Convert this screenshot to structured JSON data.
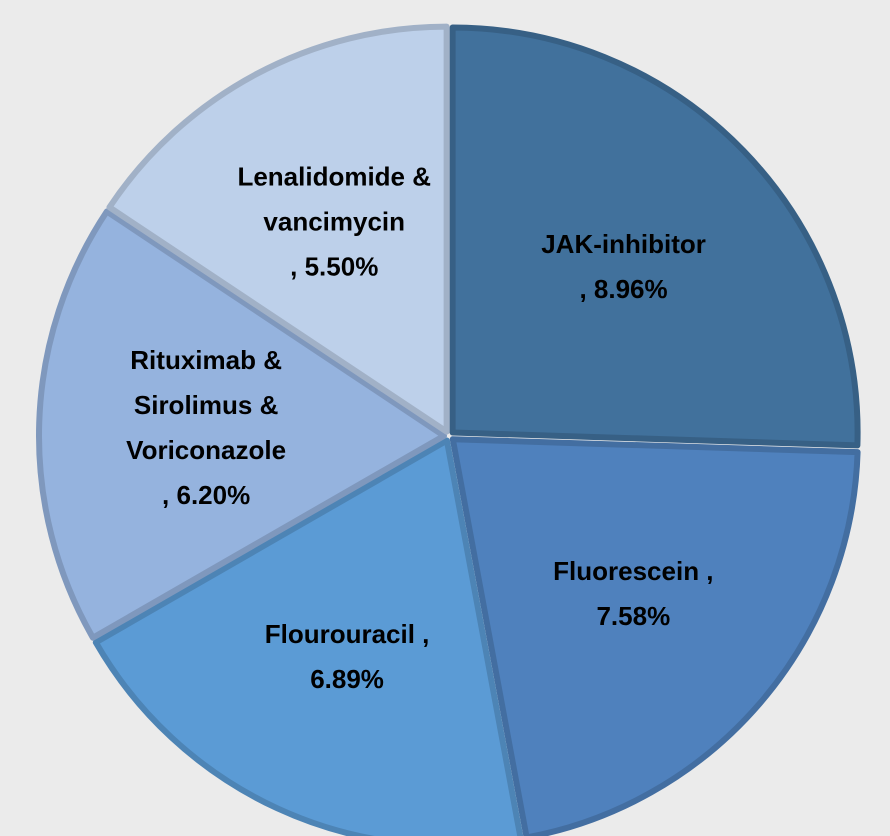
{
  "chart_data": {
    "type": "pie",
    "categories": [
      "JAK-inhibitor",
      "Fluorescein ,",
      "Flourouracil ,",
      "Rituximab & Sirolimus & Voriconazole",
      "Lenalidomide & vancimycin"
    ],
    "values": [
      8.96,
      7.58,
      6.89,
      6.2,
      5.5
    ],
    "value_labels": [
      ", 8.96%",
      "7.58%",
      "6.89%",
      ", 6.20%",
      ", 5.50%"
    ],
    "colors": [
      "#41719c",
      "#4f81bd",
      "#5b9bd5",
      "#95b3de",
      "#bdd0ea"
    ]
  }
}
